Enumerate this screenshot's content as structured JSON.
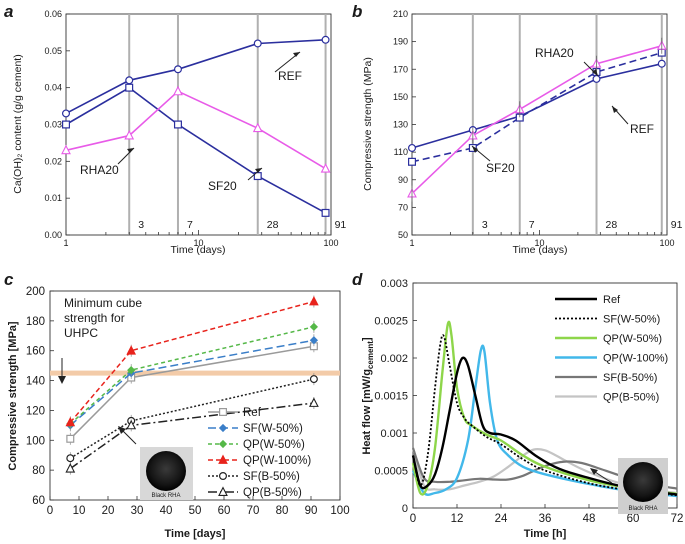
{
  "chart_data": [
    {
      "panel": "a",
      "type": "line",
      "ylabel": "Ca(OH)₂ content (g/g cement)",
      "xlabel": "Time (days)",
      "xscale": "log",
      "xlim": [
        1,
        100
      ],
      "ylim": [
        0,
        0.06
      ],
      "yticks": [
        "0.00",
        "0.01",
        "0.02",
        "0.03",
        "0.04",
        "0.05",
        "0.06"
      ],
      "xticks": [
        "1",
        "10",
        "100"
      ],
      "age_markers": [
        "3",
        "7",
        "28",
        "91"
      ],
      "series": [
        {
          "name": "REF",
          "color": "#2b2f9e",
          "marker": "circle",
          "x": [
            1,
            3,
            7,
            28,
            91
          ],
          "y": [
            0.033,
            0.042,
            0.045,
            0.052,
            0.053
          ]
        },
        {
          "name": "SF20",
          "color": "#2b2f9e",
          "marker": "square",
          "x": [
            1,
            3,
            7,
            28,
            91
          ],
          "y": [
            0.03,
            0.04,
            0.03,
            0.016,
            0.006
          ]
        },
        {
          "name": "RHA20",
          "color": "#e85be8",
          "marker": "triangle",
          "x": [
            1,
            3,
            7,
            28,
            91
          ],
          "y": [
            0.023,
            0.027,
            0.039,
            0.029,
            0.018
          ]
        }
      ]
    },
    {
      "panel": "b",
      "type": "line",
      "ylabel": "Compressive strength (MPa)",
      "xlabel": "Time (days)",
      "xscale": "log",
      "xlim": [
        1,
        100
      ],
      "ylim": [
        50,
        210
      ],
      "yticks": [
        "50",
        "70",
        "90",
        "110",
        "130",
        "150",
        "170",
        "190",
        "210"
      ],
      "xticks": [
        "1",
        "10",
        "100"
      ],
      "age_markers": [
        "3",
        "7",
        "28",
        "91"
      ],
      "series": [
        {
          "name": "REF",
          "color": "#2b2f9e",
          "marker": "circle",
          "dash": "",
          "x": [
            1,
            3,
            7,
            28,
            91
          ],
          "y": [
            113,
            126,
            136,
            163,
            174
          ]
        },
        {
          "name": "SF20",
          "color": "#2b2f9e",
          "marker": "square",
          "dash": "7,4",
          "x": [
            1,
            3,
            7,
            28,
            91
          ],
          "y": [
            103,
            113,
            135,
            168,
            182
          ]
        },
        {
          "name": "RHA20",
          "color": "#e85be8",
          "marker": "triangle",
          "dash": "",
          "x": [
            1,
            3,
            7,
            28,
            91
          ],
          "y": [
            80,
            122,
            141,
            174,
            187
          ]
        }
      ]
    },
    {
      "panel": "c",
      "type": "line",
      "ylabel": "Compressive strength [MPa]",
      "xlabel": "Time [days]",
      "xlim": [
        0,
        100
      ],
      "ylim": [
        60,
        200
      ],
      "yticks": [
        "60",
        "80",
        "100",
        "120",
        "140",
        "160",
        "180",
        "200"
      ],
      "xticks": [
        "0",
        "10",
        "20",
        "30",
        "40",
        "50",
        "60",
        "70",
        "80",
        "90",
        "100"
      ],
      "threshold": {
        "value": 145,
        "label_lines": [
          "Minimum cube",
          "strength for",
          "UHPC"
        ]
      },
      "inset_label": "Black RHA",
      "series": [
        {
          "name": "Ref",
          "color": "#9a9a9a",
          "marker": "square",
          "dash": "",
          "x": [
            7,
            28,
            91
          ],
          "y": [
            101,
            142,
            163
          ]
        },
        {
          "name": "SF(W-50%)",
          "color": "#3a7ec8",
          "marker": "diamond",
          "dash": "8,4",
          "x": [
            7,
            28,
            91
          ],
          "y": [
            110,
            145,
            167
          ]
        },
        {
          "name": "QP(W-50%)",
          "color": "#55b848",
          "marker": "diamond",
          "dash": "4,3",
          "x": [
            7,
            28,
            91
          ],
          "y": [
            111,
            147,
            176
          ]
        },
        {
          "name": "QP(W-100%)",
          "color": "#e8231c",
          "marker": "triangle",
          "dash": "5,3",
          "x": [
            7,
            28,
            91
          ],
          "y": [
            112,
            160,
            193
          ]
        },
        {
          "name": "SF(B-50%)",
          "color": "#222222",
          "marker": "open-circle",
          "dash": "2,2",
          "x": [
            7,
            28,
            91
          ],
          "y": [
            88,
            113,
            141
          ]
        },
        {
          "name": "QP(B-50%)",
          "color": "#222222",
          "marker": "open-triangle",
          "dash": "9,3,2,3",
          "x": [
            7,
            28,
            91
          ],
          "y": [
            81,
            110,
            125
          ]
        }
      ]
    },
    {
      "panel": "d",
      "type": "line",
      "ylabel": "Heat flow [mW/g",
      "ylabel_sub": "cement",
      "ylabel_end": "]",
      "xlabel": "Time [h]",
      "xlim": [
        0,
        72
      ],
      "ylim": [
        0,
        0.003
      ],
      "yticks": [
        "0",
        "0.0005",
        "0.001",
        "0.0015",
        "0.002",
        "0.0025",
        "0.003"
      ],
      "xticks": [
        "0",
        "12",
        "24",
        "36",
        "48",
        "60",
        "72"
      ],
      "inset_label": "Black RHA",
      "series": [
        {
          "name": "Ref",
          "color": "#000000",
          "dash": "",
          "width": 2.4,
          "x": [
            0,
            2,
            4,
            6,
            8,
            10,
            12,
            13.5,
            15,
            17,
            19,
            21,
            24,
            28,
            34,
            40,
            48,
            56,
            64,
            72
          ],
          "y": [
            0.0007,
            0.0003,
            0.0003,
            0.00045,
            0.0008,
            0.0013,
            0.0018,
            0.002,
            0.0019,
            0.0015,
            0.0011,
            0.001,
            0.00098,
            0.0009,
            0.00068,
            0.00052,
            0.0004,
            0.0003,
            0.00023,
            0.00018
          ]
        },
        {
          "name": "SF(W-50%)",
          "color": "#000000",
          "dash": "2,2",
          "width": 1.8,
          "x": [
            0,
            2,
            4,
            6,
            7.5,
            8.5,
            10,
            12,
            14,
            16,
            20,
            24,
            30,
            36,
            48,
            60,
            72
          ],
          "y": [
            0.0007,
            0.0003,
            0.0007,
            0.0016,
            0.0022,
            0.00228,
            0.0019,
            0.0014,
            0.0012,
            0.0011,
            0.00095,
            0.00085,
            0.00065,
            0.0005,
            0.00033,
            0.00023,
            0.00017
          ]
        },
        {
          "name": "QP(W-50%)",
          "color": "#8ed64a",
          "dash": "",
          "width": 2.4,
          "x": [
            0,
            2,
            4,
            6,
            8,
            9.5,
            10.5,
            12,
            14,
            16,
            20,
            24,
            30,
            36,
            48,
            60,
            72
          ],
          "y": [
            0.0006,
            0.0002,
            0.0003,
            0.0008,
            0.0018,
            0.00245,
            0.0023,
            0.0016,
            0.0012,
            0.0011,
            0.00098,
            0.0009,
            0.0007,
            0.00055,
            0.00037,
            0.00026,
            0.00019
          ]
        },
        {
          "name": "QP(W-100%)",
          "color": "#42b8ea",
          "dash": "",
          "width": 2.4,
          "x": [
            0,
            3,
            6,
            9,
            12,
            15,
            17,
            18.5,
            19.5,
            21,
            23,
            26,
            30,
            36,
            48,
            60,
            72
          ],
          "y": [
            0.0005,
            0.0002,
            0.0002,
            0.00025,
            0.0004,
            0.0009,
            0.0016,
            0.0021,
            0.00208,
            0.0014,
            0.0009,
            0.0007,
            0.00055,
            0.00045,
            0.00032,
            0.00022,
            0.00016
          ]
        },
        {
          "name": "SF(B-50%)",
          "color": "#777777",
          "dash": "",
          "width": 2.2,
          "x": [
            0,
            3,
            6,
            10,
            14,
            18,
            22,
            26,
            30,
            34,
            38,
            42,
            46,
            50,
            56,
            62,
            68,
            72
          ],
          "y": [
            0.0008,
            0.0004,
            0.00035,
            0.00035,
            0.00037,
            0.00039,
            0.00038,
            0.00038,
            0.00043,
            0.00052,
            0.00059,
            0.00062,
            0.0006,
            0.00054,
            0.00044,
            0.00035,
            0.00029,
            0.00026
          ]
        },
        {
          "name": "QP(B-50%)",
          "color": "#c4c4c4",
          "dash": "",
          "width": 2.2,
          "x": [
            0,
            3,
            6,
            10,
            14,
            18,
            22,
            26,
            30,
            33,
            36,
            39,
            42,
            46,
            52,
            58,
            64,
            72
          ],
          "y": [
            0.0008,
            0.0003,
            0.00025,
            0.00025,
            0.0003,
            0.00035,
            0.00042,
            0.00055,
            0.0007,
            0.00078,
            0.00077,
            0.0007,
            0.00062,
            0.00052,
            0.0004,
            0.00031,
            0.00025,
            0.0002
          ]
        }
      ]
    }
  ],
  "ui": {
    "panel_labels": [
      "a",
      "b",
      "c",
      "d"
    ]
  }
}
